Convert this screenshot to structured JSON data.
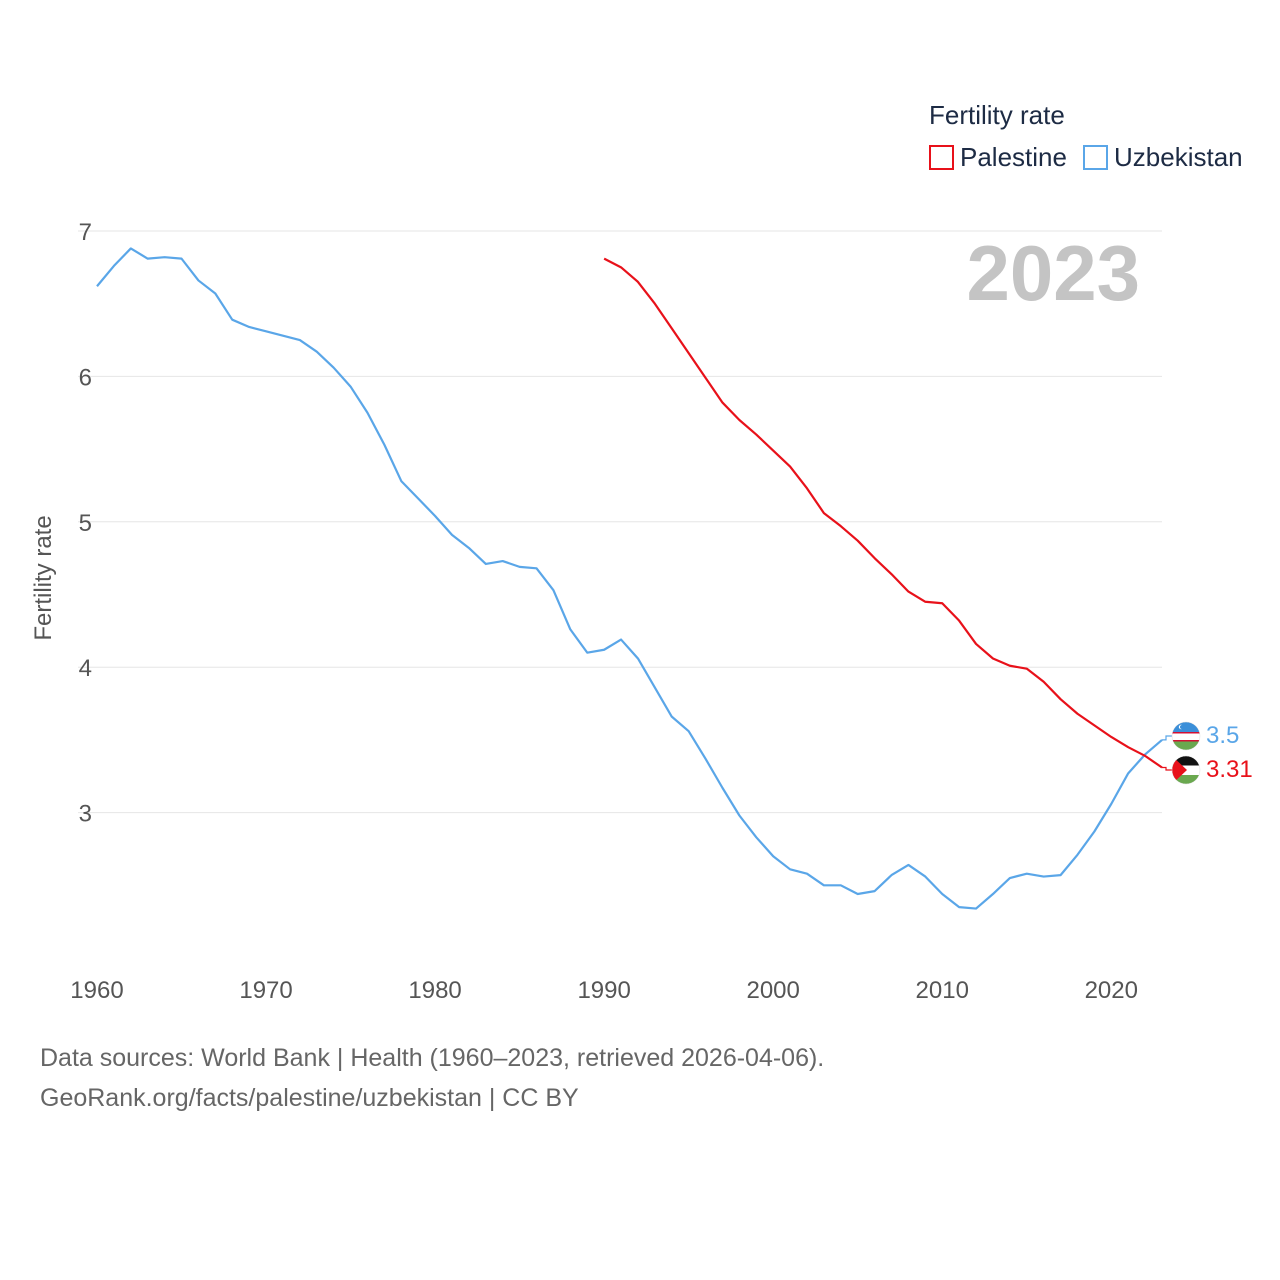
{
  "chart_data": {
    "type": "line",
    "year_label": "2023",
    "ylabel": "Fertility rate",
    "legend_title": "Fertility rate",
    "xlim": [
      1960,
      2023
    ],
    "ylim": [
      2.0,
      7.0
    ],
    "x_ticks": [
      "1960",
      "1970",
      "1980",
      "1990",
      "2000",
      "2010",
      "2020"
    ],
    "y_ticks": [
      "3",
      "4",
      "5",
      "6",
      "7"
    ],
    "series": [
      {
        "name": "Palestine",
        "color": "#e8111a",
        "end_label": "3.31",
        "flag": "palestine-flag",
        "x": [
          1990,
          1991,
          1992,
          1993,
          1994,
          1995,
          1996,
          1997,
          1998,
          1999,
          2000,
          2001,
          2002,
          2003,
          2004,
          2005,
          2006,
          2007,
          2008,
          2009,
          2010,
          2011,
          2012,
          2013,
          2014,
          2015,
          2016,
          2017,
          2018,
          2019,
          2020,
          2021,
          2022,
          2023
        ],
        "values": [
          6.81,
          6.75,
          6.65,
          6.5,
          6.33,
          6.16,
          5.99,
          5.82,
          5.7,
          5.6,
          5.49,
          5.38,
          5.23,
          5.06,
          4.97,
          4.87,
          4.75,
          4.64,
          4.52,
          4.45,
          4.44,
          4.32,
          4.16,
          4.06,
          4.01,
          3.99,
          3.9,
          3.78,
          3.68,
          3.6,
          3.52,
          3.45,
          3.39,
          3.31
        ]
      },
      {
        "name": "Uzbekistan",
        "color": "#5aa6e8",
        "end_label": "3.5",
        "flag": "uzbekistan-flag",
        "x": [
          1960,
          1961,
          1962,
          1963,
          1964,
          1965,
          1966,
          1967,
          1968,
          1969,
          1970,
          1971,
          1972,
          1973,
          1974,
          1975,
          1976,
          1977,
          1978,
          1979,
          1980,
          1981,
          1982,
          1983,
          1984,
          1985,
          1986,
          1987,
          1988,
          1989,
          1990,
          1991,
          1992,
          1993,
          1994,
          1995,
          1996,
          1997,
          1998,
          1999,
          2000,
          2001,
          2002,
          2003,
          2004,
          2005,
          2006,
          2007,
          2008,
          2009,
          2010,
          2011,
          2012,
          2013,
          2014,
          2015,
          2016,
          2017,
          2018,
          2019,
          2020,
          2021,
          2022,
          2023
        ],
        "values": [
          6.62,
          6.76,
          6.88,
          6.81,
          6.82,
          6.81,
          6.66,
          6.57,
          6.39,
          6.34,
          6.31,
          6.28,
          6.25,
          6.17,
          6.06,
          5.93,
          5.75,
          5.53,
          5.28,
          5.16,
          5.04,
          4.91,
          4.82,
          4.71,
          4.73,
          4.69,
          4.68,
          4.53,
          4.26,
          4.1,
          4.12,
          4.19,
          4.06,
          3.86,
          3.66,
          3.56,
          3.37,
          3.17,
          2.98,
          2.83,
          2.7,
          2.61,
          2.58,
          2.5,
          2.5,
          2.44,
          2.46,
          2.57,
          2.64,
          2.56,
          2.44,
          2.35,
          2.34,
          2.44,
          2.55,
          2.58,
          2.56,
          2.57,
          2.71,
          2.87,
          3.06,
          3.27,
          3.4,
          3.5
        ]
      }
    ]
  },
  "source": {
    "line1": "Data sources: World Bank | Health (1960–2023, retrieved 2026-04-06).",
    "line2": "GeoRank.org/facts/palestine/uzbekistan | CC BY"
  }
}
